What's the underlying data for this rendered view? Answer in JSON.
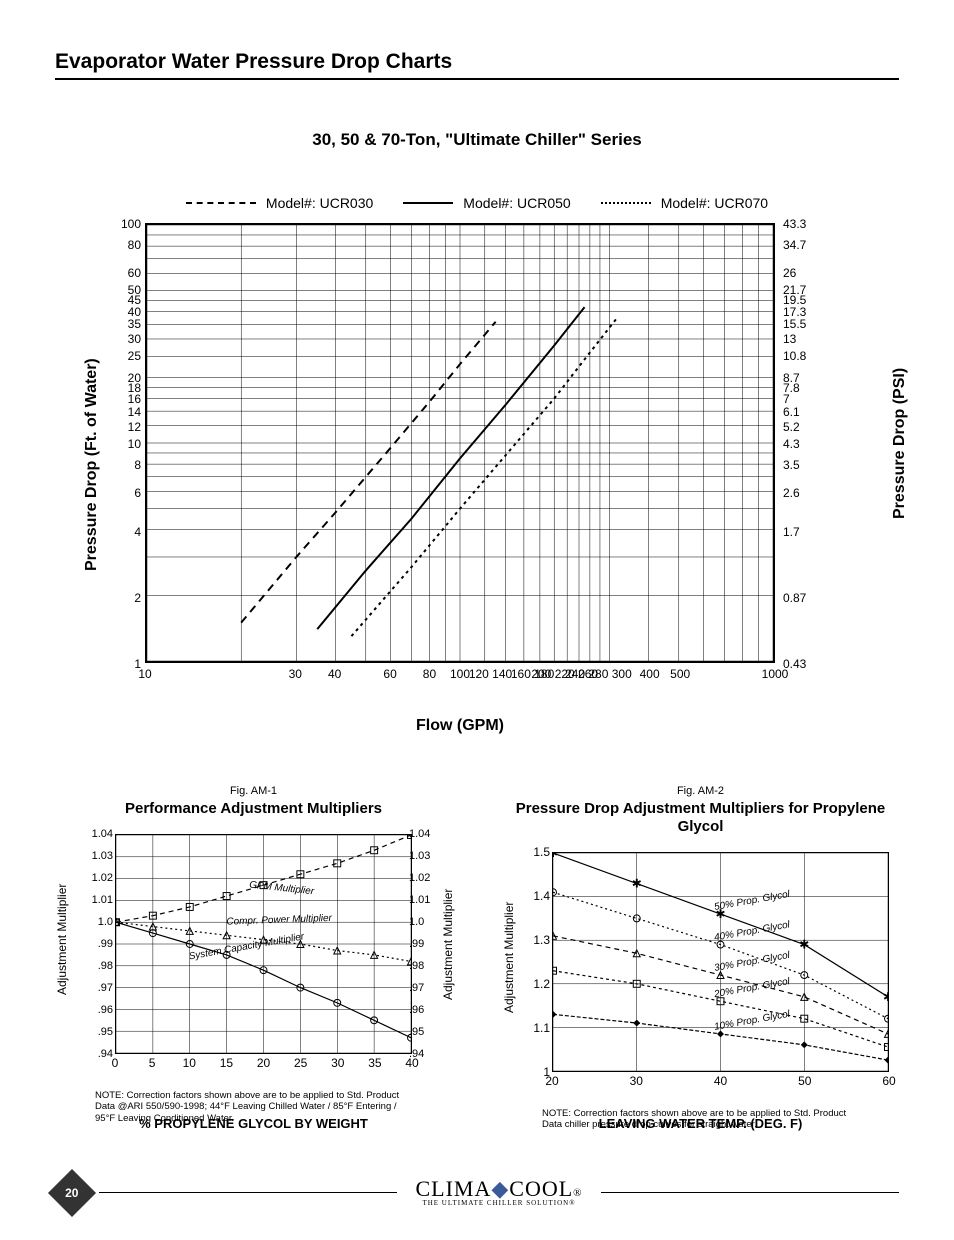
{
  "page_title": "Evaporator Water Pressure Drop Charts",
  "page_number": "20",
  "brand_name": "CLIMACOOL",
  "brand_sub": "THE ULTIMATE CHILLER SOLUTION®",
  "main_chart": {
    "title": "30, 50 & 70-Ton, \"Ultimate Chiller\" Series",
    "type": "log-log line",
    "legend": [
      {
        "label": "Model#: UCR030",
        "style": "dashed"
      },
      {
        "label": "Model#: UCR050",
        "style": "solid"
      },
      {
        "label": "Model#: UCR070",
        "style": "dotted"
      }
    ],
    "x_label": "Flow (GPM)",
    "y_left_label": "Pressure Drop (Ft. of Water)",
    "y_right_label": "Pressure Drop (PSI)",
    "x_ticks": [
      10,
      30,
      40,
      60,
      80,
      100,
      "120 140",
      "160 180",
      "200 220 260",
      "240 280 300",
      400,
      500,
      1000
    ],
    "y_left_ticks": [
      1,
      2,
      4,
      6,
      8,
      10,
      12,
      14,
      16,
      18,
      20,
      25,
      30,
      35,
      40,
      45,
      50,
      60,
      80,
      100
    ],
    "y_right_ticks": [
      0.43,
      0.87,
      1.7,
      2.6,
      3.5,
      4.3,
      5.2,
      6.1,
      7.0,
      7.8,
      8.7,
      10.8,
      13,
      15.5,
      17.3,
      19.5,
      21.7,
      26.0,
      34.7,
      43.3
    ],
    "x_range": [
      10,
      1000
    ],
    "y_range": [
      1,
      100
    ],
    "series": {
      "UCR030": {
        "dash": "8,6",
        "points": [
          [
            20,
            1.5
          ],
          [
            30,
            3.0
          ],
          [
            40,
            4.8
          ],
          [
            60,
            9.5
          ],
          [
            80,
            15.5
          ],
          [
            100,
            23
          ],
          [
            130,
            36
          ]
        ]
      },
      "UCR050": {
        "dash": "0",
        "points": [
          [
            35,
            1.4
          ],
          [
            50,
            2.6
          ],
          [
            70,
            4.5
          ],
          [
            100,
            8.5
          ],
          [
            140,
            15
          ],
          [
            200,
            28
          ],
          [
            250,
            42
          ]
        ]
      },
      "UCR070": {
        "dash": "3,4",
        "points": [
          [
            45,
            1.3
          ],
          [
            70,
            2.7
          ],
          [
            100,
            5.0
          ],
          [
            140,
            8.8
          ],
          [
            200,
            16
          ],
          [
            260,
            26
          ],
          [
            320,
            38
          ]
        ]
      }
    },
    "line_color": "#000000",
    "background": "#ffffff",
    "grid_color": "#000000"
  },
  "chart_am1": {
    "fig": "Fig. AM-1",
    "title": "Performance Adjustment Multipliers",
    "x_label": "% PROPYLENE GLYCOL BY WEIGHT",
    "y_label_left": "Adjustment Multiplier",
    "y_label_right": "Adjustment Multiplier",
    "x_ticks": [
      0,
      5,
      10,
      15,
      20,
      25,
      30,
      35,
      40
    ],
    "y_ticks": [
      ".94",
      ".95",
      ".96",
      ".97",
      ".98",
      ".99",
      "1.0",
      "1.01",
      "1.02",
      "1.03",
      "1.04"
    ],
    "x_range": [
      0,
      40
    ],
    "y_range": [
      0.94,
      1.04
    ],
    "series": {
      "gpm": {
        "label": "GPM Multiplier",
        "dash": "5,4",
        "marker": "square",
        "points": [
          [
            0,
            1.0
          ],
          [
            5,
            1.003
          ],
          [
            10,
            1.007
          ],
          [
            15,
            1.012
          ],
          [
            20,
            1.017
          ],
          [
            25,
            1.022
          ],
          [
            30,
            1.027
          ],
          [
            35,
            1.033
          ],
          [
            40,
            1.04
          ]
        ]
      },
      "compr": {
        "label": "Compr. Power Multiplier",
        "dash": "2,3",
        "marker": "triangle",
        "points": [
          [
            0,
            1.0
          ],
          [
            5,
            0.998
          ],
          [
            10,
            0.996
          ],
          [
            15,
            0.994
          ],
          [
            20,
            0.992
          ],
          [
            25,
            0.99
          ],
          [
            30,
            0.987
          ],
          [
            35,
            0.985
          ],
          [
            40,
            0.982
          ]
        ]
      },
      "capacity": {
        "label": "System Capacity Multiplier",
        "dash": "0",
        "marker": "circle",
        "points": [
          [
            0,
            1.0
          ],
          [
            5,
            0.995
          ],
          [
            10,
            0.99
          ],
          [
            15,
            0.985
          ],
          [
            20,
            0.978
          ],
          [
            25,
            0.97
          ],
          [
            30,
            0.963
          ],
          [
            35,
            0.955
          ],
          [
            40,
            0.947
          ]
        ]
      }
    },
    "note": "NOTE: Correction factors shown above are to be applied to Std. Product Data @ARI 550/590-1998; 44°F Leaving Chilled Water / 85°F Entering / 95°F Leaving Conditioned Water."
  },
  "chart_am2": {
    "fig": "Fig. AM-2",
    "title": "Pressure Drop Adjustment Multipliers for Propylene Glycol",
    "x_label": "LEAVING WATER TEMP. (DEG. F)",
    "y_label": "Adjustment Multiplier",
    "x_ticks": [
      20,
      30,
      40,
      50,
      60
    ],
    "y_ticks": [
      "1",
      "1.1",
      "1.2",
      "1.3",
      "1.4",
      "1.5"
    ],
    "x_range": [
      20,
      60
    ],
    "y_range": [
      1.0,
      1.5
    ],
    "series": {
      "p50": {
        "label": "50% Prop. Glycol",
        "dash": "0",
        "marker": "star",
        "points": [
          [
            20,
            1.5
          ],
          [
            30,
            1.43
          ],
          [
            40,
            1.36
          ],
          [
            50,
            1.29
          ],
          [
            60,
            1.17
          ]
        ]
      },
      "p40": {
        "label": "40% Prop. Glycol",
        "dash": "2,3",
        "marker": "circle",
        "points": [
          [
            20,
            1.41
          ],
          [
            30,
            1.35
          ],
          [
            40,
            1.29
          ],
          [
            50,
            1.22
          ],
          [
            60,
            1.12
          ]
        ]
      },
      "p30": {
        "label": "30% Prop. Glycol",
        "dash": "5,4",
        "marker": "triangle",
        "points": [
          [
            20,
            1.31
          ],
          [
            30,
            1.27
          ],
          [
            40,
            1.22
          ],
          [
            50,
            1.17
          ],
          [
            60,
            1.085
          ]
        ]
      },
      "p20": {
        "label": "20% Prop. Glycol",
        "dash": "3,3",
        "marker": "square",
        "points": [
          [
            20,
            1.23
          ],
          [
            30,
            1.2
          ],
          [
            40,
            1.16
          ],
          [
            50,
            1.12
          ],
          [
            60,
            1.055
          ]
        ]
      },
      "p10": {
        "label": "10% Prop. Glycol",
        "dash": "4,2",
        "marker": "diamond",
        "points": [
          [
            20,
            1.13
          ],
          [
            30,
            1.11
          ],
          [
            40,
            1.085
          ],
          [
            50,
            1.06
          ],
          [
            60,
            1.025
          ]
        ]
      }
    },
    "note": "NOTE: Correction factors shown above are to be applied to Std. Product Data chiller pressure drop curves for straight water."
  }
}
